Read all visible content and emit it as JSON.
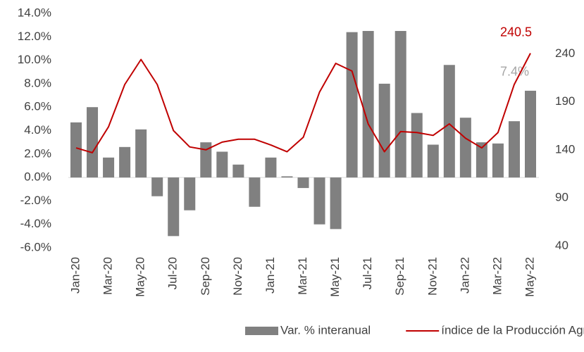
{
  "chart_data": {
    "type": "bar-line",
    "categories": [
      "Jan-20",
      null,
      "Mar-20",
      null,
      "May-20",
      null,
      "Jul-20",
      null,
      "Sep-20",
      null,
      "Nov-20",
      null,
      "Jan-21",
      null,
      "Mar-21",
      null,
      "May-21",
      null,
      "Jul-21",
      null,
      "Sep-21",
      null,
      "Nov-21",
      null,
      "Jan-22",
      null,
      "Mar-22",
      null,
      "May-22"
    ],
    "series": [
      {
        "name": "Var. % interanual",
        "type": "bar",
        "axis": "y",
        "color": "#808080",
        "values": [
          4.7,
          6.0,
          1.7,
          2.6,
          4.1,
          -1.6,
          -5.0,
          -2.8,
          3.0,
          2.2,
          1.1,
          -2.5,
          1.7,
          0.1,
          -0.9,
          -4.0,
          -4.4,
          12.4,
          12.5,
          8.0,
          12.5,
          5.5,
          2.8,
          9.6,
          5.1,
          3.0,
          2.9,
          4.8,
          7.4
        ],
        "value_labels": [
          null,
          null,
          null,
          null,
          null,
          null,
          null,
          null,
          null,
          null,
          null,
          null,
          null,
          null,
          null,
          null,
          null,
          null,
          null,
          null,
          null,
          null,
          null,
          null,
          null,
          null,
          null,
          null,
          "7.4%"
        ],
        "value_label_color": "#a6a6a6"
      },
      {
        "name": "índice de la Producción Agropecuaria",
        "type": "line",
        "axis": "y2",
        "color": "#c00000",
        "values": [
          142,
          137,
          164,
          208,
          234,
          208,
          160,
          143,
          140,
          148,
          151,
          151,
          145,
          138,
          153,
          200,
          230,
          222,
          167,
          138,
          159,
          158,
          155,
          167,
          152,
          142,
          158,
          208,
          240.5
        ],
        "value_labels": [
          null,
          null,
          null,
          null,
          null,
          null,
          null,
          null,
          null,
          null,
          null,
          null,
          null,
          null,
          null,
          null,
          null,
          null,
          null,
          null,
          null,
          null,
          null,
          null,
          null,
          null,
          null,
          null,
          "240.5"
        ],
        "value_label_color": "#c00000"
      }
    ],
    "ylim": [
      -6,
      14
    ],
    "yticks": [
      {
        "value": -6,
        "label": "-6.0%"
      },
      {
        "value": -4,
        "label": "-4.0%"
      },
      {
        "value": -2,
        "label": "-2.0%"
      },
      {
        "value": 0,
        "label": "0.0%"
      },
      {
        "value": 2,
        "label": "2.0%"
      },
      {
        "value": 4,
        "label": "4.0%"
      },
      {
        "value": 6,
        "label": "6.0%"
      },
      {
        "value": 8,
        "label": "8.0%"
      },
      {
        "value": 10,
        "label": "10.0%"
      },
      {
        "value": 12,
        "label": "12.0%"
      },
      {
        "value": 14,
        "label": "14.0%"
      }
    ],
    "y2lim": [
      38,
      282
    ],
    "y2ticks": [
      40,
      90,
      140,
      190,
      240
    ],
    "grid": false,
    "legend": "bottom"
  }
}
